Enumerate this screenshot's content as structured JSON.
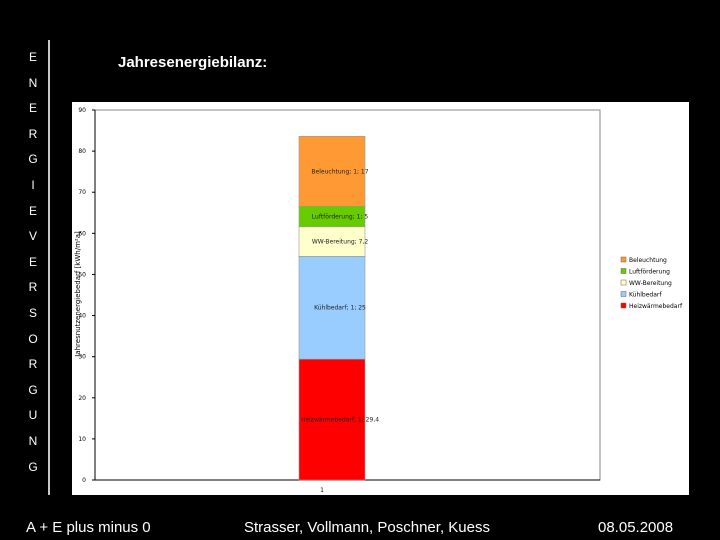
{
  "sidebar": {
    "letters": [
      "E",
      "N",
      "E",
      "R",
      "G",
      "I",
      "E",
      "V",
      "E",
      "R",
      "S",
      "O",
      "R",
      "G",
      "U",
      "N",
      "G"
    ]
  },
  "slide": {
    "title": "Jahresenergiebilanz:"
  },
  "footer": {
    "left": "A + E plus minus 0",
    "center": "Strasser, Vollmann, Poschner, Kuess",
    "right": "08.05.2008"
  },
  "chart_data": {
    "type": "bar",
    "stacked": true,
    "categories": [
      "1"
    ],
    "ylim": [
      0,
      90
    ],
    "yticks": [
      "0",
      "10",
      "20",
      "30",
      "40",
      "50",
      "60",
      "70",
      "80",
      "90"
    ],
    "ylabel": "Jahresnutzenergiebedarf [kWh/m²a]",
    "grid": false,
    "legend_position": "right",
    "series": [
      {
        "name": "Heizwärmebedarf",
        "values": [
          29.4
        ],
        "label": "Heizwärmebedarf; 1; 29,4",
        "color": "#ff0000"
      },
      {
        "name": "Kühlbedarf",
        "values": [
          25
        ],
        "label": "Kühlbedarf; 1; 25",
        "color": "#99ccff"
      },
      {
        "name": "WW-Bereitung",
        "values": [
          7.2
        ],
        "label": "WW-Bereitung; 7,2",
        "color": "#ffffcc"
      },
      {
        "name": "Luftförderung",
        "values": [
          5
        ],
        "label": "Luftförderung; 1; 5",
        "color": "#66cc00"
      },
      {
        "name": "Beleuchtung",
        "values": [
          17
        ],
        "label": "Beleuchtung; 1; 17",
        "color": "#ff9933"
      }
    ],
    "legend_order": [
      "Beleuchtung",
      "Luftförderung",
      "WW-Bereitung",
      "Kühlbedarf",
      "Heizwärmebedarf"
    ]
  }
}
